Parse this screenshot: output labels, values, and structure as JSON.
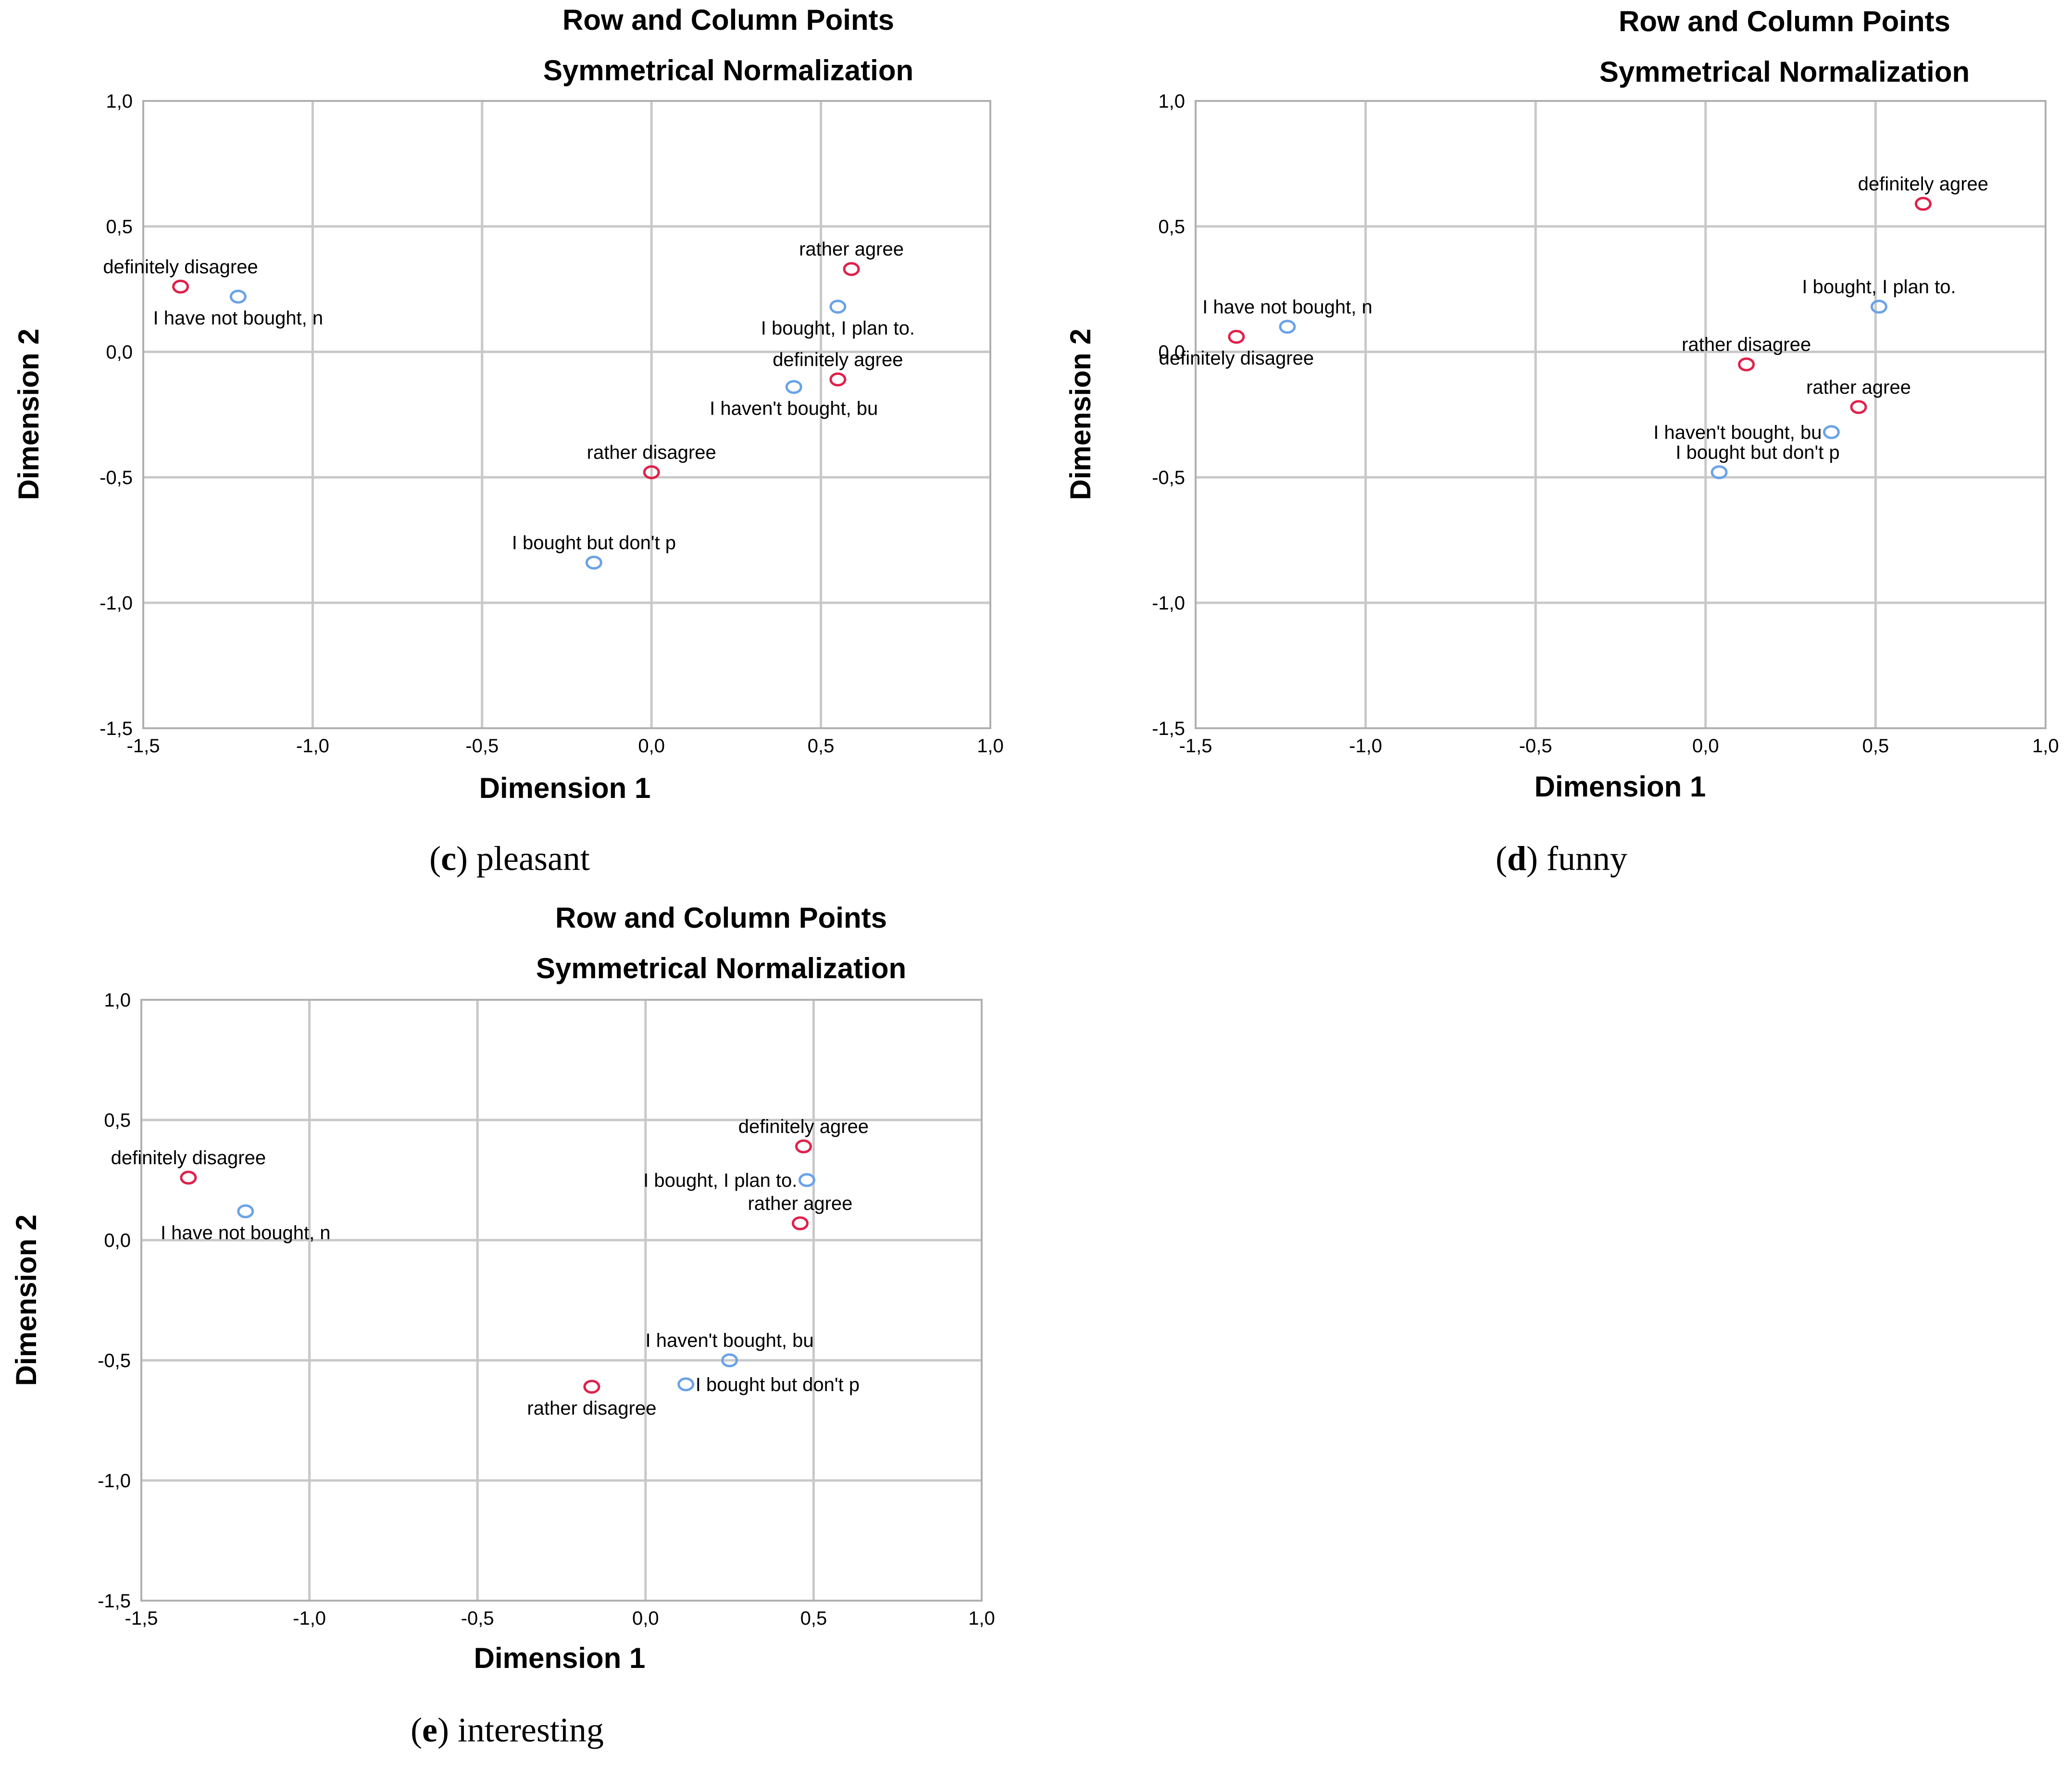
{
  "chart_data": [
    {
      "type": "scatter",
      "panel_letter": "c",
      "caption": "pleasant",
      "title": "Row and Column Points",
      "subtitle": "Symmetrical Normalization",
      "xlabel": "Dimension 1",
      "ylabel": "Dimension 2",
      "xlim": [
        -1.5,
        1.0
      ],
      "ylim": [
        -1.5,
        1.0
      ],
      "xticks": [
        "-1,5",
        "-1,0",
        "-0,5",
        "0,0",
        "0,5",
        "1,0"
      ],
      "yticks": [
        "1,0",
        "0,5",
        "0,0",
        "-0,5",
        "-1,0",
        "-1,5"
      ],
      "grid": true,
      "series": [
        {
          "name": "row",
          "color": "#e0204a",
          "points": [
            {
              "label": "definitely disagree",
              "x": -1.39,
              "y": 0.26,
              "label_pos": "above"
            },
            {
              "label": "rather agree",
              "x": 0.59,
              "y": 0.33,
              "label_pos": "above"
            },
            {
              "label": "definitely agree",
              "x": 0.55,
              "y": -0.11,
              "label_pos": "above"
            },
            {
              "label": "rather disagree",
              "x": 0.0,
              "y": -0.48,
              "label_pos": "above"
            }
          ]
        },
        {
          "name": "column",
          "color": "#6aa2e8",
          "points": [
            {
              "label": "I have not bought, n",
              "x": -1.22,
              "y": 0.22,
              "label_pos": "below"
            },
            {
              "label": "I bought, I plan to.",
              "x": 0.55,
              "y": 0.18,
              "label_pos": "below"
            },
            {
              "label": "I haven't bought, bu",
              "x": 0.42,
              "y": -0.14,
              "label_pos": "below"
            },
            {
              "label": "I bought but don't p",
              "x": -0.17,
              "y": -0.84,
              "label_pos": "above"
            }
          ]
        }
      ]
    },
    {
      "type": "scatter",
      "panel_letter": "d",
      "caption": "funny",
      "title": "Row and Column Points",
      "subtitle": "Symmetrical Normalization",
      "xlabel": "Dimension 1",
      "ylabel": "Dimension 2",
      "xlim": [
        -1.5,
        1.0
      ],
      "ylim": [
        -1.5,
        1.0
      ],
      "xticks": [
        "-1,5",
        "-1,0",
        "-0,5",
        "0,0",
        "0,5",
        "1,0"
      ],
      "yticks": [
        "1,0",
        "0,5",
        "0,0",
        "-0,5",
        "-1,0",
        "-1,5"
      ],
      "grid": true,
      "series": [
        {
          "name": "row",
          "color": "#e0204a",
          "points": [
            {
              "label": "definitely agree",
              "x": 0.64,
              "y": 0.59,
              "label_pos": "above"
            },
            {
              "label": "definitely disagree",
              "x": -1.38,
              "y": 0.06,
              "label_pos": "below"
            },
            {
              "label": "rather disagree",
              "x": 0.12,
              "y": -0.05,
              "label_pos": "above"
            },
            {
              "label": "rather agree",
              "x": 0.45,
              "y": -0.22,
              "label_pos": "above"
            }
          ]
        },
        {
          "name": "column",
          "color": "#6aa2e8",
          "points": [
            {
              "label": "I bought, I plan to.",
              "x": 0.51,
              "y": 0.18,
              "label_pos": "above"
            },
            {
              "label": "I have not bought, n",
              "x": -1.23,
              "y": 0.1,
              "label_pos": "above"
            },
            {
              "label": "I haven't bought, bu",
              "x": 0.37,
              "y": -0.32,
              "label_pos": "left"
            },
            {
              "label": "I bought but don't p",
              "x": 0.04,
              "y": -0.48,
              "label_pos": "above-right"
            }
          ]
        }
      ]
    },
    {
      "type": "scatter",
      "panel_letter": "e",
      "caption": "interesting",
      "title": "Row and Column Points",
      "subtitle": "Symmetrical Normalization",
      "xlabel": "Dimension 1",
      "ylabel": "Dimension 2",
      "xlim": [
        -1.5,
        1.0
      ],
      "ylim": [
        -1.5,
        1.0
      ],
      "xticks": [
        "-1,5",
        "-1,0",
        "-0,5",
        "0,0",
        "0,5",
        "1,0"
      ],
      "yticks": [
        "1,0",
        "0,5",
        "0,0",
        "-0,5",
        "-1,0",
        "-1,5"
      ],
      "grid": true,
      "series": [
        {
          "name": "row",
          "color": "#e0204a",
          "points": [
            {
              "label": "definitely disagree",
              "x": -1.36,
              "y": 0.26,
              "label_pos": "above"
            },
            {
              "label": "definitely agree",
              "x": 0.47,
              "y": 0.39,
              "label_pos": "above"
            },
            {
              "label": "rather agree",
              "x": 0.46,
              "y": 0.07,
              "label_pos": "above"
            },
            {
              "label": "rather disagree",
              "x": -0.16,
              "y": -0.61,
              "label_pos": "below"
            }
          ]
        },
        {
          "name": "column",
          "color": "#6aa2e8",
          "points": [
            {
              "label": "I have not bought, n",
              "x": -1.19,
              "y": 0.12,
              "label_pos": "below"
            },
            {
              "label": "I bought, I plan to.",
              "x": 0.48,
              "y": 0.25,
              "label_pos": "left"
            },
            {
              "label": "I haven't bought, bu",
              "x": 0.25,
              "y": -0.5,
              "label_pos": "above"
            },
            {
              "label": "I bought but don't p",
              "x": 0.12,
              "y": -0.6,
              "label_pos": "right"
            }
          ]
        }
      ]
    }
  ]
}
